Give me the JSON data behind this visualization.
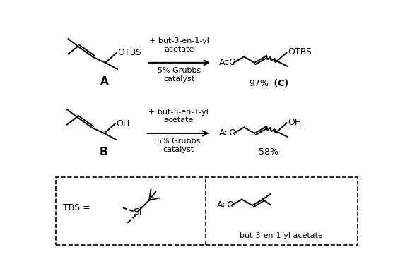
{
  "bg_color": "#ffffff",
  "fig_width": 5.73,
  "fig_height": 3.94,
  "dpi": 100,
  "reaction1_reagent": "+ but-3-en-1-yl\nacetate",
  "reaction1_condition": "5% Grubbs\ncatalyst",
  "reaction1_yield": "97%",
  "reaction1_yield_bold": "(C)",
  "reaction1_label": "A",
  "reaction2_reagent": "+ but-3-en-1-yl\nacetate",
  "reaction2_condition": "5% Grubbs\ncatalyst",
  "reaction2_yield": "58%",
  "reaction2_label": "B",
  "tbs_label": "TBS =",
  "si_label": "Si",
  "but_label": "but-3-en-1-yl acetate",
  "aco_label": "AcO"
}
